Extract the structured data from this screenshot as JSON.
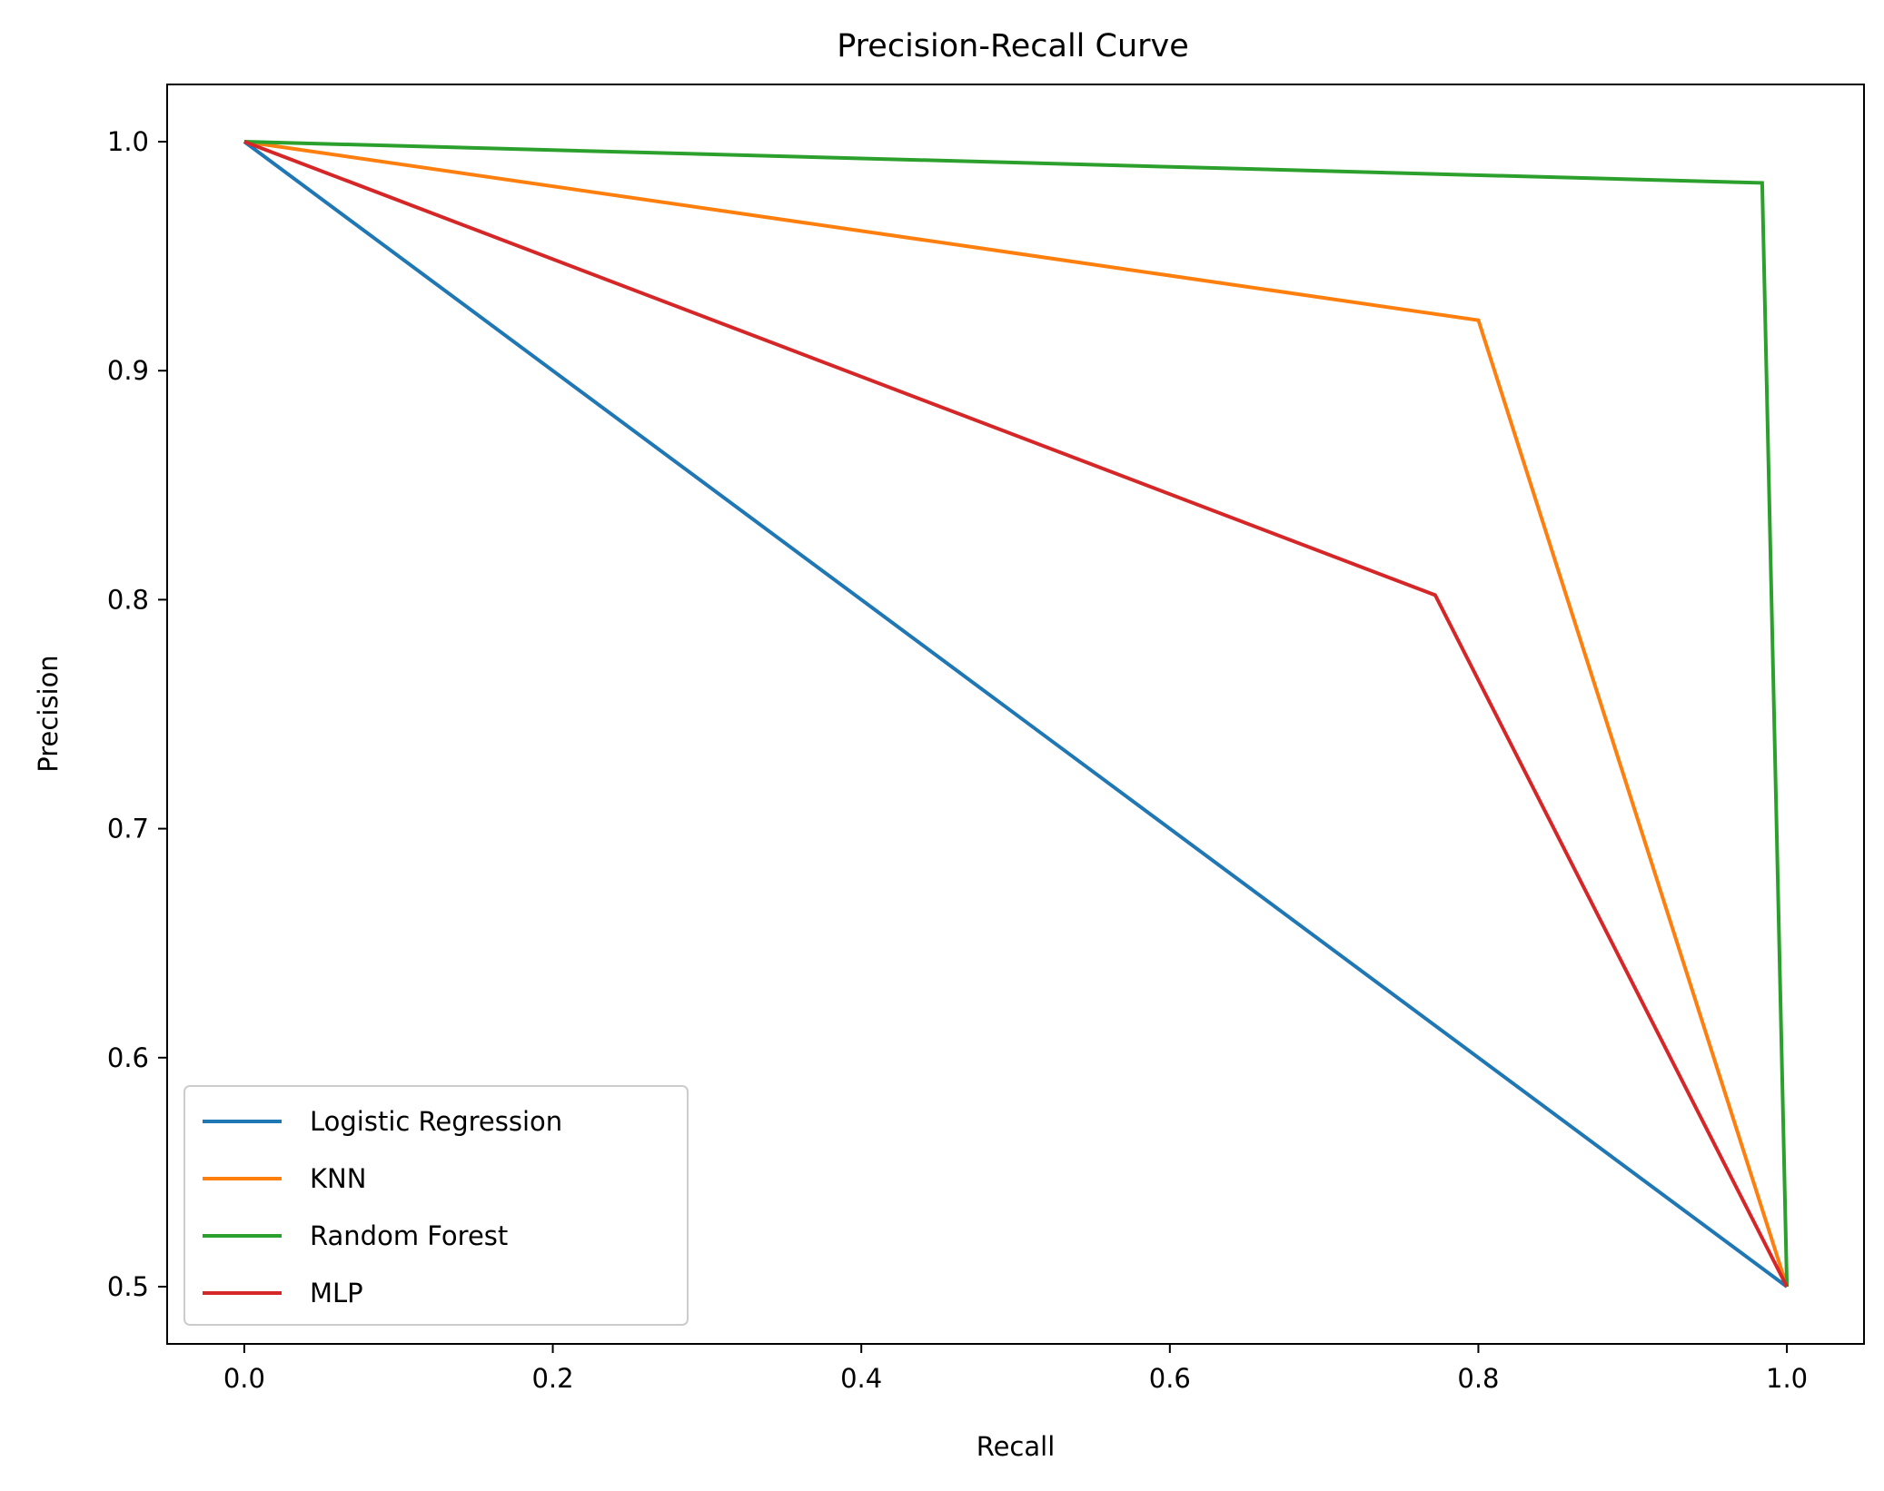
{
  "chart_data": {
    "type": "line",
    "title": "Precision-Recall Curve",
    "xlabel": "Recall",
    "ylabel": "Precision",
    "xlim": [
      -0.05,
      1.05
    ],
    "ylim": [
      0.475,
      1.025
    ],
    "xticks": [
      0.0,
      0.2,
      0.4,
      0.6,
      0.8,
      1.0
    ],
    "xtick_labels": [
      "0.0",
      "0.2",
      "0.4",
      "0.6",
      "0.8",
      "1.0"
    ],
    "yticks": [
      0.5,
      0.6,
      0.7,
      0.8,
      0.9,
      1.0
    ],
    "ytick_labels": [
      "0.5",
      "0.6",
      "0.7",
      "0.8",
      "0.9",
      "1.0"
    ],
    "grid": false,
    "legend_position": "lower-left",
    "series": [
      {
        "name": "Logistic Regression",
        "color": "#1f77b4",
        "x": [
          0.0,
          1.0,
          1.0
        ],
        "y": [
          1.0,
          0.5,
          0.5
        ]
      },
      {
        "name": "KNN",
        "color": "#ff7f0e",
        "x": [
          0.0,
          0.8,
          1.0
        ],
        "y": [
          1.0,
          0.922,
          0.5
        ]
      },
      {
        "name": "Random Forest",
        "color": "#2ca02c",
        "x": [
          0.0,
          0.984,
          1.0
        ],
        "y": [
          1.0,
          0.982,
          0.5
        ]
      },
      {
        "name": "MLP",
        "color": "#d62728",
        "x": [
          0.0,
          0.772,
          1.0
        ],
        "y": [
          1.0,
          0.802,
          0.5
        ]
      }
    ]
  }
}
